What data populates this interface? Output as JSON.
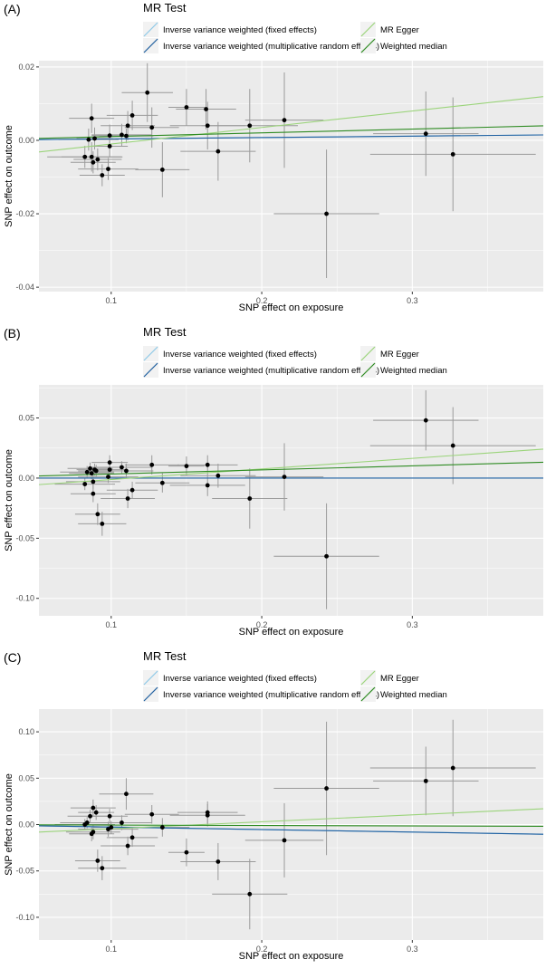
{
  "legend": {
    "title": "MR Test",
    "methods": [
      {
        "label": "Inverse variance weighted (fixed effects)",
        "color": "#8ECAE8"
      },
      {
        "label": "Inverse variance weighted (multiplicative random effects)",
        "color": "#1F5FA0"
      },
      {
        "label": "MR Egger",
        "color": "#9BD47B"
      },
      {
        "label": "Weighted median",
        "color": "#2E8B22"
      }
    ]
  },
  "colors": {
    "panel_bg": "#EBEBEB",
    "grid": "#FFFFFF",
    "errorbar": "#9A9A9A",
    "point": "#000000"
  },
  "chart_data": [
    {
      "type": "scatter",
      "panel_label": "(A)",
      "xlabel": "SNP effect on exposure",
      "ylabel": "SNP effect on outcome",
      "xlim": [
        0.052,
        0.387
      ],
      "ylim": [
        -0.0412,
        0.0217
      ],
      "xticks": [
        0.1,
        0.2,
        0.3
      ],
      "xtick_labels": [
        "0.1",
        "0.2",
        "0.3"
      ],
      "yticks": [
        0.02,
        0.0,
        -0.02,
        -0.04
      ],
      "ytick_labels": [
        "0.02",
        "0.00",
        "-0.02",
        "-0.04"
      ],
      "lines": [
        {
          "name": "Inverse variance weighted (fixed effects)",
          "slope": 0.0038
        },
        {
          "name": "Inverse variance weighted (multiplicative random effects)",
          "slope": 0.0038
        },
        {
          "name": "MR Egger",
          "slope": 0.045,
          "intercept": -0.0055
        },
        {
          "name": "Weighted median",
          "slope": 0.0102
        }
      ],
      "points": [
        {
          "x": 0.0825,
          "y": -0.0045,
          "xerr": 0.025,
          "yerr": 0.003
        },
        {
          "x": 0.085,
          "y": 0.0002,
          "xerr": 0.02,
          "yerr": 0.003
        },
        {
          "x": 0.087,
          "y": 0.006,
          "xerr": 0.015,
          "yerr": 0.004
        },
        {
          "x": 0.087,
          "y": -0.0045,
          "xerr": 0.02,
          "yerr": 0.004
        },
        {
          "x": 0.088,
          "y": -0.006,
          "xerr": 0.015,
          "yerr": 0.003
        },
        {
          "x": 0.089,
          "y": 0.0005,
          "xerr": 0.012,
          "yerr": 0.003
        },
        {
          "x": 0.091,
          "y": -0.0052,
          "xerr": 0.016,
          "yerr": 0.003
        },
        {
          "x": 0.094,
          "y": -0.0095,
          "xerr": 0.015,
          "yerr": 0.003
        },
        {
          "x": 0.098,
          "y": -0.0078,
          "xerr": 0.02,
          "yerr": 0.003
        },
        {
          "x": 0.099,
          "y": -0.0016,
          "xerr": 0.012,
          "yerr": 0.003
        },
        {
          "x": 0.099,
          "y": 0.0013,
          "xerr": 0.012,
          "yerr": 0.003
        },
        {
          "x": 0.107,
          "y": 0.0015,
          "xerr": 0.02,
          "yerr": 0.003
        },
        {
          "x": 0.11,
          "y": 0.0012,
          "xerr": 0.018,
          "yerr": 0.002
        },
        {
          "x": 0.111,
          "y": 0.004,
          "xerr": 0.018,
          "yerr": 0.004
        },
        {
          "x": 0.114,
          "y": 0.0068,
          "xerr": 0.017,
          "yerr": 0.004
        },
        {
          "x": 0.124,
          "y": 0.013,
          "xerr": 0.017,
          "yerr": 0.008
        },
        {
          "x": 0.127,
          "y": 0.0035,
          "xerr": 0.018,
          "yerr": 0.0055
        },
        {
          "x": 0.134,
          "y": -0.008,
          "xerr": 0.018,
          "yerr": 0.0075
        },
        {
          "x": 0.15,
          "y": 0.009,
          "xerr": 0.012,
          "yerr": 0.005
        },
        {
          "x": 0.163,
          "y": 0.0085,
          "xerr": 0.02,
          "yerr": 0.0055
        },
        {
          "x": 0.164,
          "y": 0.004,
          "xerr": 0.025,
          "yerr": 0.0065
        },
        {
          "x": 0.171,
          "y": -0.003,
          "xerr": 0.025,
          "yerr": 0.008
        },
        {
          "x": 0.192,
          "y": 0.004,
          "xerr": 0.032,
          "yerr": 0.01
        },
        {
          "x": 0.215,
          "y": 0.0055,
          "xerr": 0.026,
          "yerr": 0.013
        },
        {
          "x": 0.243,
          "y": -0.02,
          "xerr": 0.035,
          "yerr": 0.0175
        },
        {
          "x": 0.309,
          "y": 0.0018,
          "xerr": 0.035,
          "yerr": 0.0115
        },
        {
          "x": 0.327,
          "y": -0.0038,
          "xerr": 0.055,
          "yerr": 0.0155
        }
      ]
    },
    {
      "type": "scatter",
      "panel_label": "(B)",
      "xlabel": "SNP effect on exposure",
      "ylabel": "SNP effect on outcome",
      "xlim": [
        0.052,
        0.387
      ],
      "ylim": [
        -0.1145,
        0.0775
      ],
      "xticks": [
        0.1,
        0.2,
        0.3
      ],
      "xtick_labels": [
        "0.1",
        "0.2",
        "0.3"
      ],
      "yticks": [
        0.05,
        0.0,
        -0.05,
        -0.1
      ],
      "ytick_labels": [
        "0.05",
        "0.00",
        "-0.05",
        "-0.10"
      ],
      "lines": [
        {
          "name": "Inverse variance weighted (fixed effects)",
          "slope": 0.0
        },
        {
          "name": "Inverse variance weighted (multiplicative random effects)",
          "slope": 0.0
        },
        {
          "name": "MR Egger",
          "slope": 0.088,
          "intercept": -0.01
        },
        {
          "name": "Weighted median",
          "slope": 0.034
        }
      ],
      "points": [
        {
          "x": 0.0825,
          "y": -0.005,
          "xerr": 0.02,
          "yerr": 0.005
        },
        {
          "x": 0.084,
          "y": 0.005,
          "xerr": 0.018,
          "yerr": 0.005
        },
        {
          "x": 0.086,
          "y": 0.008,
          "xerr": 0.015,
          "yerr": 0.005
        },
        {
          "x": 0.087,
          "y": 0.004,
          "xerr": 0.015,
          "yerr": 0.005
        },
        {
          "x": 0.088,
          "y": -0.003,
          "xerr": 0.018,
          "yerr": 0.006
        },
        {
          "x": 0.088,
          "y": -0.013,
          "xerr": 0.015,
          "yerr": 0.007
        },
        {
          "x": 0.089,
          "y": 0.007,
          "xerr": 0.012,
          "yerr": 0.005
        },
        {
          "x": 0.09,
          "y": 0.006,
          "xerr": 0.012,
          "yerr": 0.005
        },
        {
          "x": 0.091,
          "y": -0.03,
          "xerr": 0.015,
          "yerr": 0.009
        },
        {
          "x": 0.094,
          "y": -0.038,
          "xerr": 0.016,
          "yerr": 0.01
        },
        {
          "x": 0.098,
          "y": 0.001,
          "xerr": 0.02,
          "yerr": 0.005
        },
        {
          "x": 0.099,
          "y": 0.013,
          "xerr": 0.012,
          "yerr": 0.006
        },
        {
          "x": 0.099,
          "y": 0.007,
          "xerr": 0.012,
          "yerr": 0.005
        },
        {
          "x": 0.107,
          "y": 0.009,
          "xerr": 0.02,
          "yerr": 0.005
        },
        {
          "x": 0.11,
          "y": 0.006,
          "xerr": 0.018,
          "yerr": 0.006
        },
        {
          "x": 0.111,
          "y": -0.017,
          "xerr": 0.018,
          "yerr": 0.008
        },
        {
          "x": 0.114,
          "y": -0.01,
          "xerr": 0.017,
          "yerr": 0.007
        },
        {
          "x": 0.127,
          "y": 0.011,
          "xerr": 0.018,
          "yerr": 0.008
        },
        {
          "x": 0.134,
          "y": -0.004,
          "xerr": 0.018,
          "yerr": 0.008
        },
        {
          "x": 0.15,
          "y": 0.01,
          "xerr": 0.012,
          "yerr": 0.008
        },
        {
          "x": 0.164,
          "y": 0.011,
          "xerr": 0.02,
          "yerr": 0.008
        },
        {
          "x": 0.164,
          "y": -0.006,
          "xerr": 0.025,
          "yerr": 0.009
        },
        {
          "x": 0.171,
          "y": 0.002,
          "xerr": 0.025,
          "yerr": 0.01
        },
        {
          "x": 0.192,
          "y": -0.017,
          "xerr": 0.025,
          "yerr": 0.025
        },
        {
          "x": 0.215,
          "y": 0.001,
          "xerr": 0.026,
          "yerr": 0.028
        },
        {
          "x": 0.243,
          "y": -0.065,
          "xerr": 0.035,
          "yerr": 0.044
        },
        {
          "x": 0.309,
          "y": 0.048,
          "xerr": 0.035,
          "yerr": 0.025
        },
        {
          "x": 0.327,
          "y": 0.027,
          "xerr": 0.055,
          "yerr": 0.032
        }
      ]
    },
    {
      "type": "scatter",
      "panel_label": "(C)",
      "xlabel": "SNP effect on exposure",
      "ylabel": "SNP effect on outcome",
      "xlim": [
        0.052,
        0.387
      ],
      "ylim": [
        -0.1245,
        0.1245
      ],
      "xticks": [
        0.1,
        0.2,
        0.3
      ],
      "xtick_labels": [
        "0.1",
        "0.2",
        "0.3"
      ],
      "yticks": [
        0.1,
        0.05,
        0.0,
        -0.05,
        -0.1
      ],
      "ytick_labels": [
        "0.10",
        "0.05",
        "0.00",
        "-0.05",
        "-0.10"
      ],
      "lines": [
        {
          "name": "Inverse variance weighted (fixed effects)",
          "slope": -0.027
        },
        {
          "name": "Inverse variance weighted (multiplicative random effects)",
          "slope": -0.027
        },
        {
          "name": "MR Egger",
          "slope": 0.075,
          "intercept": -0.012
        },
        {
          "name": "Weighted median",
          "slope": -0.005
        }
      ],
      "points": [
        {
          "x": 0.0825,
          "y": 0.0,
          "xerr": 0.02,
          "yerr": 0.006
        },
        {
          "x": 0.084,
          "y": 0.002,
          "xerr": 0.018,
          "yerr": 0.006
        },
        {
          "x": 0.086,
          "y": 0.009,
          "xerr": 0.015,
          "yerr": 0.007
        },
        {
          "x": 0.087,
          "y": -0.01,
          "xerr": 0.015,
          "yerr": 0.008
        },
        {
          "x": 0.088,
          "y": -0.008,
          "xerr": 0.018,
          "yerr": 0.008
        },
        {
          "x": 0.088,
          "y": 0.018,
          "xerr": 0.015,
          "yerr": 0.009
        },
        {
          "x": 0.09,
          "y": 0.013,
          "xerr": 0.012,
          "yerr": 0.008
        },
        {
          "x": 0.091,
          "y": -0.039,
          "xerr": 0.015,
          "yerr": 0.012
        },
        {
          "x": 0.094,
          "y": -0.047,
          "xerr": 0.016,
          "yerr": 0.013
        },
        {
          "x": 0.098,
          "y": -0.005,
          "xerr": 0.02,
          "yerr": 0.008
        },
        {
          "x": 0.099,
          "y": 0.009,
          "xerr": 0.012,
          "yerr": 0.008
        },
        {
          "x": 0.1,
          "y": -0.003,
          "xerr": 0.012,
          "yerr": 0.007
        },
        {
          "x": 0.107,
          "y": 0.002,
          "xerr": 0.02,
          "yerr": 0.008
        },
        {
          "x": 0.11,
          "y": 0.033,
          "xerr": 0.018,
          "yerr": 0.017
        },
        {
          "x": 0.111,
          "y": -0.023,
          "xerr": 0.018,
          "yerr": 0.01
        },
        {
          "x": 0.114,
          "y": -0.014,
          "xerr": 0.017,
          "yerr": 0.01
        },
        {
          "x": 0.127,
          "y": 0.011,
          "xerr": 0.018,
          "yerr": 0.01
        },
        {
          "x": 0.134,
          "y": -0.003,
          "xerr": 0.018,
          "yerr": 0.01
        },
        {
          "x": 0.15,
          "y": -0.03,
          "xerr": 0.012,
          "yerr": 0.015
        },
        {
          "x": 0.164,
          "y": 0.013,
          "xerr": 0.02,
          "yerr": 0.012
        },
        {
          "x": 0.164,
          "y": 0.01,
          "xerr": 0.025,
          "yerr": 0.012
        },
        {
          "x": 0.171,
          "y": -0.04,
          "xerr": 0.025,
          "yerr": 0.02
        },
        {
          "x": 0.192,
          "y": -0.075,
          "xerr": 0.025,
          "yerr": 0.038
        },
        {
          "x": 0.215,
          "y": -0.017,
          "xerr": 0.026,
          "yerr": 0.04
        },
        {
          "x": 0.243,
          "y": 0.039,
          "xerr": 0.035,
          "yerr": 0.072
        },
        {
          "x": 0.309,
          "y": 0.047,
          "xerr": 0.035,
          "yerr": 0.037
        },
        {
          "x": 0.327,
          "y": 0.061,
          "xerr": 0.055,
          "yerr": 0.052
        }
      ]
    }
  ]
}
